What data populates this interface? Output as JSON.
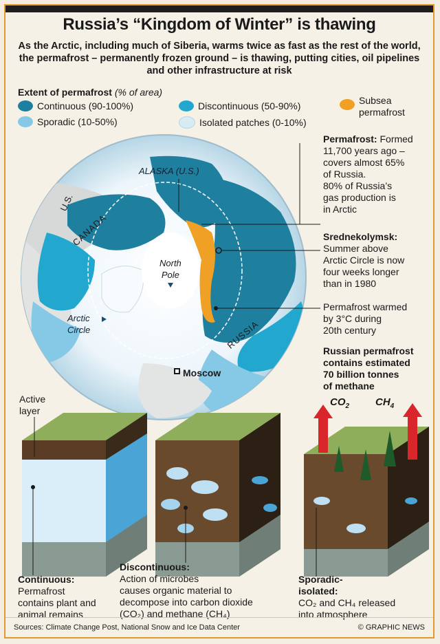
{
  "title": "Russia’s “Kingdom of Winter” is thawing",
  "subtitle": "As the Arctic, including much of Siberia, warms twice as fast as the rest of the world, the permafrost – permanently frozen ground – is thawing, putting cities, oil pipelines and other infrastructure at risk",
  "legend": {
    "title": "Extent of permafrost",
    "title_note": "(% of area)",
    "items": [
      {
        "label": "Continuous (90-100%)",
        "color": "#1f7f9e"
      },
      {
        "label": "Discontinuous (50-90%)",
        "color": "#22a8cf"
      },
      {
        "label": "Sporadic (10-50%)",
        "color": "#86c9e6"
      },
      {
        "label": "Isolated patches (0-10%)",
        "color": "#d8ecf4"
      },
      {
        "label": "Subsea permafrost",
        "color": "#f0a024"
      }
    ]
  },
  "map": {
    "alaska": "ALASKA (U.S.)",
    "us": "U.S.",
    "canada": "CANADA",
    "north_pole_1": "North",
    "north_pole_2": "Pole",
    "arctic_1": "Arctic",
    "arctic_2": "Circle",
    "russia": "RUSSIA",
    "moscow": "Moscow"
  },
  "notes": {
    "permafrost_head": "Permafrost:",
    "permafrost_text": [
      "Formed",
      "11,700 years ago –",
      "covers almost 65%",
      "of Russia.",
      "80% of Russia’s",
      "gas production is",
      "in Arctic"
    ],
    "sred_head": "Srednekolymsk:",
    "sred_text": [
      "Summer above",
      "Arctic Circle is now",
      "four weeks longer",
      "than in 1980"
    ],
    "warm_text": [
      "Permafrost warmed",
      "by 3°C during",
      "20th century"
    ],
    "methane": [
      "Russian permafrost",
      "contains estimated",
      "70 billion tonnes",
      "of methane"
    ]
  },
  "blocks": {
    "active_layer": [
      "Active",
      "layer"
    ],
    "co2": "CO",
    "co2_sub": "2",
    "ch4": "CH",
    "ch4_sub": "4",
    "continuous_head": "Continuous:",
    "continuous_text": [
      "Permafrost",
      "contains plant and",
      "animal remains"
    ],
    "discontinuous_head": "Discontinuous:",
    "discontinuous_text": [
      "Action of microbes",
      "causes organic material to",
      "decompose into carbon dioxide",
      "(CO₂) and methane (CH₄)"
    ],
    "sporadic_head": [
      "Sporadic-",
      "isolated:"
    ],
    "sporadic_text": [
      "CO₂ and CH₄ released",
      "into atmosphere"
    ]
  },
  "footer": {
    "sources": "Sources: Climate Change Post, National Snow and Ice Data Center",
    "credit": "© GRAPHIC NEWS"
  }
}
